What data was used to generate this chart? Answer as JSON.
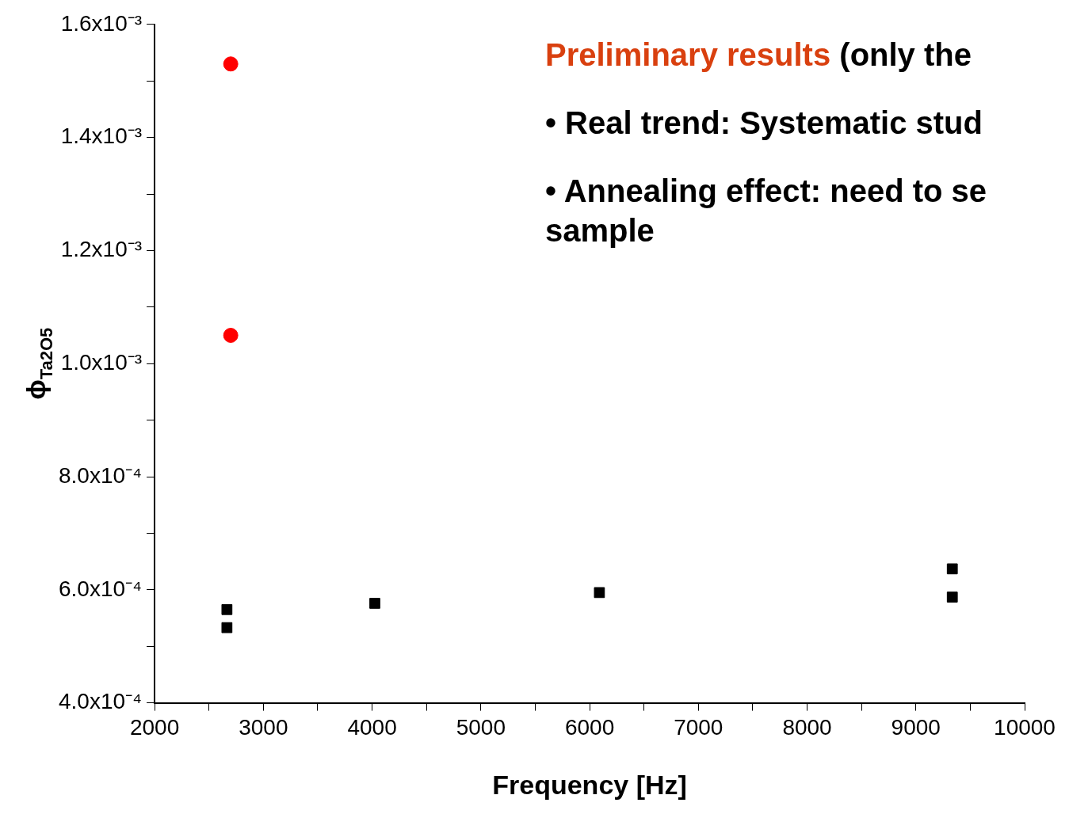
{
  "chart_data": {
    "type": "scatter",
    "xlabel": "Frequency [Hz]",
    "ylabel": "ϕ$_{Ta2O5}$",
    "series": [
      {
        "color": "#ff0000",
        "marker": "circle",
        "x": [
          2700,
          2700
        ],
        "values": [
          0.00153,
          0.00105
        ]
      },
      {
        "color": "#000000",
        "marker": "square",
        "x": [
          2665,
          2665,
          4025,
          6090,
          9335,
          9335
        ],
        "values": [
          0.000565,
          0.000533,
          0.000576,
          0.000595,
          0.000637,
          0.000587
        ]
      }
    ],
    "xlim": [
      2000,
      10000
    ],
    "xticks": [
      2000,
      {
        "value": 2500,
        "label": null
      },
      3000,
      {
        "value": 3500,
        "label": null
      },
      4000,
      {
        "value": 4500,
        "label": null
      },
      5000,
      {
        "value": 5500,
        "label": null
      },
      6000,
      {
        "value": 6500,
        "label": null
      },
      7000,
      {
        "value": 7500,
        "label": null
      },
      8000,
      {
        "value": 8500,
        "label": null
      },
      9000,
      {
        "value": 9500,
        "label": null
      },
      10000
    ],
    "ylim": [
      0.0004,
      0.0016
    ],
    "yticks": [
      {
        "value": 0.0004,
        "label": "4.0x10⁻⁴"
      },
      {
        "value": 0.0005,
        "label": null
      },
      {
        "value": 0.0006,
        "label": "6.0x10⁻⁴"
      },
      {
        "value": 0.0007,
        "label": null
      },
      {
        "value": 0.0008,
        "label": "8.0x10⁻⁴"
      },
      {
        "value": 0.0009,
        "label": null
      },
      {
        "value": 0.001,
        "label": "1.0x10⁻³"
      },
      {
        "value": 0.0011,
        "label": null
      },
      {
        "value": 0.0012,
        "label": "1.2x10⁻³"
      },
      {
        "value": 0.0013,
        "label": null
      },
      {
        "value": 0.0014,
        "label": "1.4x10⁻³"
      },
      {
        "value": 0.0015,
        "label": null
      },
      {
        "value": 0.0016,
        "label": "1.6x10⁻³"
      }
    ],
    "grid": false,
    "legend": false,
    "annotations": [
      "Preliminary results",
      "(only the",
      "• Real trend: Systematic stud",
      "• Annealing effect: need to se sample"
    ]
  }
}
